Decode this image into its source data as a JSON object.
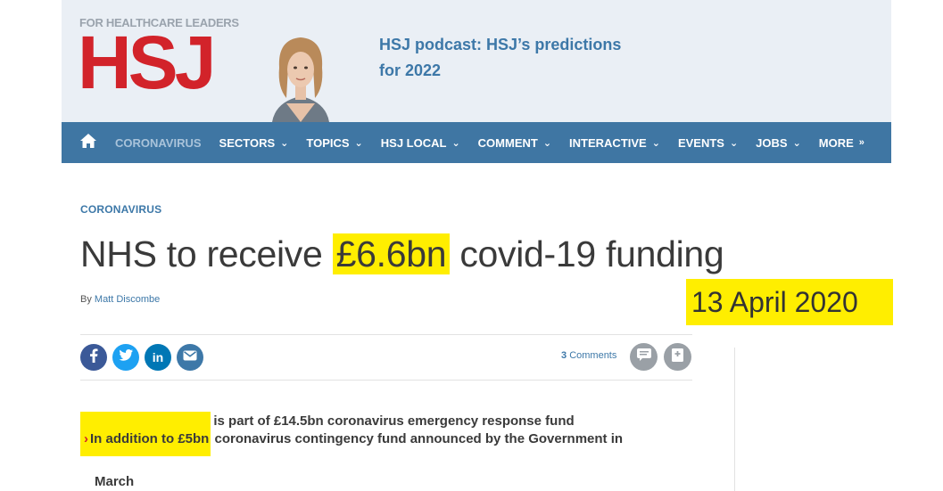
{
  "header": {
    "logo_tagline": "FOR HEALTHCARE LEADERS",
    "logo_text": "HSJ",
    "promo_text": "HSJ podcast: HSJ’s predictions for 2022"
  },
  "nav": {
    "items": [
      {
        "label": "CORONAVIRUS",
        "active": true,
        "has_dropdown": false
      },
      {
        "label": "SECTORS",
        "has_dropdown": true
      },
      {
        "label": "TOPICS",
        "has_dropdown": true
      },
      {
        "label": "HSJ LOCAL",
        "has_dropdown": true
      },
      {
        "label": "COMMENT",
        "has_dropdown": true
      },
      {
        "label": "INTERACTIVE",
        "has_dropdown": true
      },
      {
        "label": "EVENTS",
        "has_dropdown": true
      },
      {
        "label": "JOBS",
        "has_dropdown": true
      },
      {
        "label": "MORE",
        "has_dropdown": false
      }
    ],
    "home_icon": "home-icon"
  },
  "article": {
    "category": "CORONAVIRUS",
    "title_before": "NHS to receive",
    "title_highlight": "£6.6bn",
    "title_after": "covid-19 funding",
    "byline_prefix": "By",
    "author": "Matt Discombe",
    "date": "13 April 2020",
    "comments_count": "3",
    "comments_label": "Comments",
    "bullets": [
      {
        "highlight": "",
        "text": "£6.6bn for the NHS is part of £14.5bn coronavirus emergency response fund"
      },
      {
        "highlight": "In addition to £5bn",
        "text": "coronavirus contingency fund announced by the Government in",
        "text_line2": "March"
      }
    ]
  },
  "colors": {
    "brand_red": "#d2232a",
    "nav_blue": "#3f76a3",
    "link_blue": "#3d78a8",
    "highlight_yellow": "#ffee00"
  }
}
